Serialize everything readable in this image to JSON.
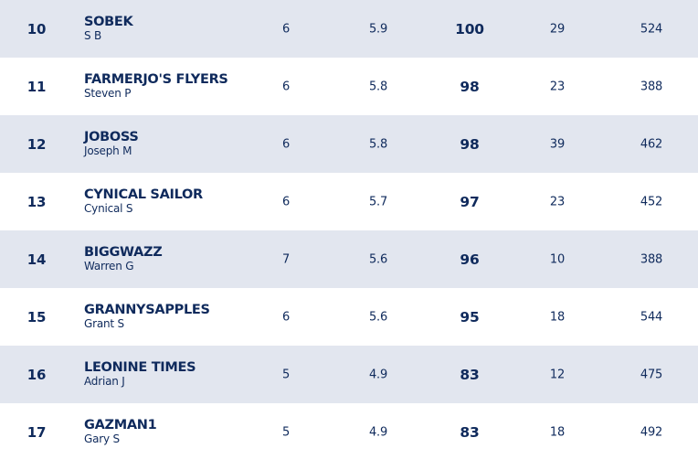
{
  "rows": [
    {
      "rank": "10",
      "team": "SOBEK",
      "owner": "S B",
      "col1": "6",
      "col2": "5.9",
      "points": "100",
      "col4": "29",
      "col5": "524"
    },
    {
      "rank": "11",
      "team": "FARMERJO'S FLYERS",
      "owner": "Steven P",
      "col1": "6",
      "col2": "5.8",
      "points": "98",
      "col4": "23",
      "col5": "388"
    },
    {
      "rank": "12",
      "team": "JOBOSS",
      "owner": "Joseph M",
      "col1": "6",
      "col2": "5.8",
      "points": "98",
      "col4": "39",
      "col5": "462"
    },
    {
      "rank": "13",
      "team": "CYNICAL SAILOR",
      "owner": "Cynical S",
      "col1": "6",
      "col2": "5.7",
      "points": "97",
      "col4": "23",
      "col5": "452"
    },
    {
      "rank": "14",
      "team": "BIGGWAZZ",
      "owner": "Warren G",
      "col1": "7",
      "col2": "5.6",
      "points": "96",
      "col4": "10",
      "col5": "388"
    },
    {
      "rank": "15",
      "team": "GRANNYSAPPLES",
      "owner": "Grant S",
      "col1": "6",
      "col2": "5.6",
      "points": "95",
      "col4": "18",
      "col5": "544"
    },
    {
      "rank": "16",
      "team": "LEONINE TIMES",
      "owner": "Adrian J",
      "col1": "5",
      "col2": "4.9",
      "points": "83",
      "col4": "12",
      "col5": "475"
    },
    {
      "rank": "17",
      "team": "GAZMAN1",
      "owner": "Gary S",
      "col1": "5",
      "col2": "4.9",
      "points": "83",
      "col4": "18",
      "col5": "492"
    }
  ],
  "colors": {
    "text": "#0f2a5c",
    "row_shaded": "#e2e6ef",
    "row_plain": "#ffffff"
  }
}
